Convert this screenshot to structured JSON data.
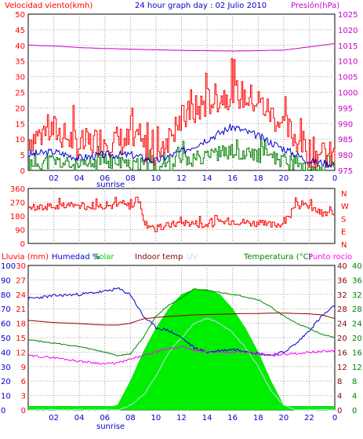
{
  "header": {
    "left": "Velocidad viento(kmh)",
    "center": "24 hour graph day : 02 Julio 2010",
    "right": "Presión(hPa)"
  },
  "colors": {
    "wind": "#ff0000",
    "gust": "#ff0000",
    "avg_wind": "#0000cc",
    "wind_low": "#008000",
    "pressure": "#cc00cc",
    "direction": "#ff0000",
    "humidity": "#0000cc",
    "solar": "#00ee00",
    "indoor_temp": "#8b0000",
    "uv": "#c8d8ff",
    "temperature": "#008000",
    "dew_point": "#ff00ff",
    "rain": "#ff0000"
  },
  "time_axis": {
    "labels": [
      "02",
      "04",
      "06",
      "08",
      "10",
      "12",
      "14",
      "16",
      "18",
      "20",
      "22",
      "0"
    ],
    "sunrise": "sunrise"
  },
  "panel2": {
    "compass": [
      "N",
      "W",
      "S",
      "E",
      "N"
    ]
  },
  "panel3": {
    "labels": {
      "rain": "Lluvia (mm)",
      "humidity": "Humedad %",
      "solar": "Solar",
      "indoor": "Indoor temp",
      "uv": "UV",
      "temperature": "Temperatura (°C)",
      "dew": "Punto rocío"
    }
  },
  "chart_data": [
    {
      "type": "line",
      "title": "24 hour graph day : 02 Julio 2010",
      "ylabel": "Velocidad viento(kmh)",
      "ylabel_right": "Presión(hPa)",
      "ylim": [
        0,
        50
      ],
      "yticks": [
        0,
        5,
        10,
        15,
        20,
        25,
        30,
        35,
        40,
        45,
        50
      ],
      "ylim_right": [
        975,
        1025
      ],
      "yticks_right": [
        975,
        980,
        985,
        990,
        995,
        1000,
        1005,
        1010,
        1015,
        1020,
        1025
      ],
      "x": [
        0,
        2,
        4,
        6,
        8,
        10,
        12,
        14,
        16,
        18,
        20,
        22,
        24
      ],
      "series": [
        {
          "name": "Velocidad viento",
          "role": "gust",
          "values": [
            10,
            13,
            8,
            10,
            9,
            6,
            16,
            22,
            25,
            22,
            14,
            6,
            4
          ]
        },
        {
          "name": "",
          "role": "average",
          "values": [
            5,
            6,
            4,
            5,
            5,
            3,
            6,
            10,
            14,
            11,
            7,
            3,
            2
          ]
        },
        {
          "name": "",
          "role": "low",
          "values": [
            2,
            3,
            1,
            3,
            2,
            1,
            3,
            5,
            6,
            5,
            3,
            1,
            1
          ]
        },
        {
          "name": "Presión",
          "role": "pressure",
          "values": [
            1015.1,
            1014.8,
            1014.3,
            1014.0,
            1013.8,
            1013.6,
            1013.4,
            1013.3,
            1013.2,
            1013.3,
            1013.5,
            1014.5,
            1015.6
          ]
        }
      ]
    },
    {
      "type": "line",
      "ylim": [
        0,
        360
      ],
      "yticks": [
        0,
        90,
        180,
        270,
        360
      ],
      "x": [
        0,
        2,
        4,
        6,
        8,
        8.7,
        9,
        10,
        11,
        12,
        14,
        16,
        18,
        19,
        20,
        21,
        22,
        23,
        24
      ],
      "series": [
        {
          "name": "",
          "role": "direction",
          "values": [
            230,
            240,
            245,
            250,
            250,
            290,
            135,
            95,
            120,
            140,
            125,
            150,
            130,
            120,
            135,
            250,
            240,
            195,
            195
          ]
        }
      ]
    },
    {
      "type": "line",
      "ylim_left": [
        0,
        30
      ],
      "yticks_left": [
        0,
        3,
        6,
        9,
        12,
        15,
        18,
        21,
        24,
        27,
        30
      ],
      "ylim_left_outer": [
        0,
        100
      ],
      "yticks_left_outer": [
        0,
        10,
        20,
        30,
        40,
        50,
        60,
        70,
        80,
        90,
        100
      ],
      "ylim_right": [
        0,
        40
      ],
      "yticks_right": [
        0,
        4,
        8,
        12,
        16,
        20,
        24,
        28,
        32,
        36,
        40
      ],
      "x": [
        0,
        2,
        4,
        6,
        7,
        8,
        9,
        10,
        11,
        12,
        13,
        14,
        15,
        16,
        17,
        18,
        19,
        20,
        21,
        22,
        23,
        24
      ],
      "series": [
        {
          "name": "Humedad %",
          "role": "humidity",
          "axis": "left_outer",
          "values": [
            77,
            79,
            80,
            82,
            84,
            80,
            65,
            57,
            55,
            50,
            43,
            40,
            41,
            42,
            41,
            39,
            38,
            40,
            46,
            55,
            65,
            72
          ]
        },
        {
          "name": "Solar",
          "role": "solar",
          "axis": "left",
          "values": [
            0,
            0,
            0,
            0.3,
            1,
            6,
            12,
            17,
            21,
            24,
            25,
            25,
            24,
            21,
            17,
            12,
            6,
            1,
            0,
            0,
            0,
            0
          ]
        },
        {
          "name": "Indoor temp",
          "role": "indoor",
          "axis": "right",
          "values": [
            24.8,
            24.2,
            23.9,
            23.5,
            23.5,
            24.0,
            25.2,
            25.6,
            25.9,
            26.1,
            26.3,
            26.4,
            26.5,
            26.6,
            26.7,
            26.7,
            26.8,
            26.8,
            26.7,
            26.6,
            26.3,
            25.3
          ]
        },
        {
          "name": "Temperatura (°C)",
          "role": "temperature",
          "axis": "right",
          "values": [
            19.5,
            18.5,
            17.5,
            16.0,
            15.0,
            15.5,
            20,
            26,
            29,
            31,
            33.6,
            33,
            32.5,
            32,
            31.3,
            30.5,
            28.5,
            26,
            24,
            22.5,
            21,
            20
          ]
        },
        {
          "name": "Punto rocío",
          "role": "dew",
          "axis": "right",
          "values": [
            15.0,
            14.5,
            13.5,
            12.8,
            13.0,
            14,
            15,
            16,
            17,
            17.5,
            16.5,
            16,
            16,
            16,
            16,
            15.5,
            15,
            15.5,
            15.6,
            16,
            16.2,
            16.4
          ]
        },
        {
          "name": "UV",
          "role": "uv",
          "axis": "left",
          "values": [
            0,
            0,
            0,
            0,
            0,
            1,
            3,
            7,
            12,
            15,
            18,
            19,
            18,
            16,
            13,
            9,
            4,
            1,
            0,
            0,
            0,
            0
          ]
        }
      ]
    }
  ]
}
